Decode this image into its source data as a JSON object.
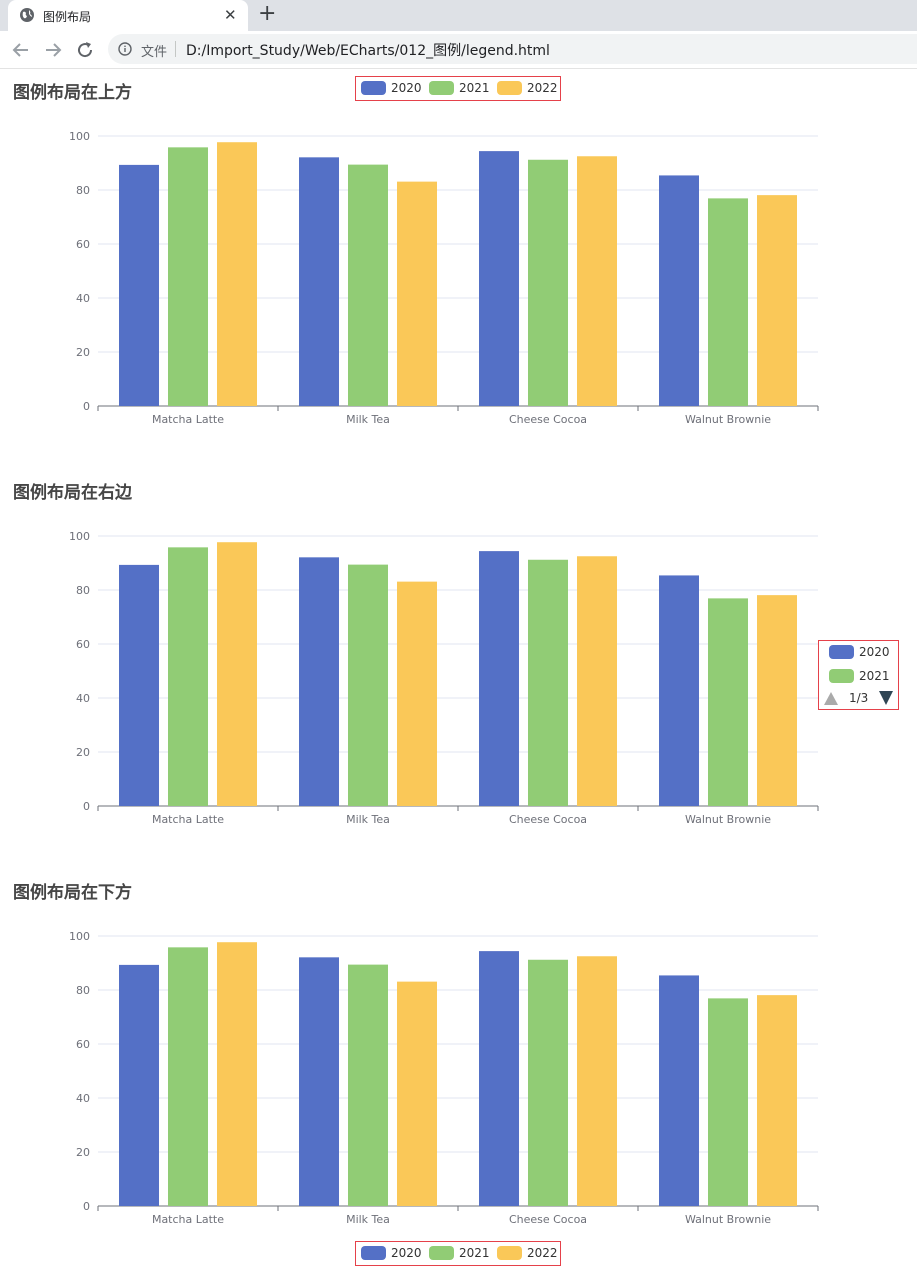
{
  "browser": {
    "tab_title": "图例布局",
    "file_label": "文件",
    "url": "D:/Import_Study/Web/ECharts/012_图例/legend.html",
    "icons": [
      "globe-icon",
      "close-icon",
      "plus-icon",
      "back-arrow-icon",
      "forward-arrow-icon",
      "reload-icon",
      "info-icon"
    ]
  },
  "charts": [
    {
      "id": "top",
      "title": "图例布局在上方",
      "legend_position": "top",
      "legend_page": ""
    },
    {
      "id": "right",
      "title": "图例布局在右边",
      "legend_position": "right",
      "legend_page": "1/3"
    },
    {
      "id": "bottom",
      "title": "图例布局在下方",
      "legend_position": "bottom",
      "legend_page": ""
    }
  ],
  "colors": {
    "2020": "#5470c6",
    "2021": "#91cc75",
    "2022": "#fac858",
    "legend_border": "#e5414a"
  },
  "chart_data": [
    {
      "type": "bar",
      "title": "图例布局在上方",
      "categories": [
        "Matcha Latte",
        "Milk Tea",
        "Cheese Cocoa",
        "Walnut Brownie"
      ],
      "series": [
        {
          "name": "2020",
          "values": [
            89.3,
            92.1,
            94.4,
            85.4
          ]
        },
        {
          "name": "2021",
          "values": [
            95.8,
            89.4,
            91.2,
            76.9
          ]
        },
        {
          "name": "2022",
          "values": [
            97.7,
            83.1,
            92.5,
            78.1
          ]
        }
      ],
      "yticks": [
        "0",
        "20",
        "40",
        "60",
        "80",
        "100"
      ],
      "ylim": [
        0,
        100
      ],
      "legend": [
        "2020",
        "2021",
        "2022"
      ],
      "legend_placement": "top",
      "grid": true
    },
    {
      "type": "bar",
      "title": "图例布局在右边",
      "categories": [
        "Matcha Latte",
        "Milk Tea",
        "Cheese Cocoa",
        "Walnut Brownie"
      ],
      "series": [
        {
          "name": "2020",
          "values": [
            89.3,
            92.1,
            94.4,
            85.4
          ]
        },
        {
          "name": "2021",
          "values": [
            95.8,
            89.4,
            91.2,
            76.9
          ]
        },
        {
          "name": "2022",
          "values": [
            97.7,
            83.1,
            92.5,
            78.1
          ]
        }
      ],
      "yticks": [
        "0",
        "20",
        "40",
        "60",
        "80",
        "100"
      ],
      "ylim": [
        0,
        100
      ],
      "legend": [
        "2020",
        "2021"
      ],
      "legend_placement": "right",
      "grid": true
    },
    {
      "type": "bar",
      "title": "图例布局在下方",
      "categories": [
        "Matcha Latte",
        "Milk Tea",
        "Cheese Cocoa",
        "Walnut Brownie"
      ],
      "series": [
        {
          "name": "2020",
          "values": [
            89.3,
            92.1,
            94.4,
            85.4
          ]
        },
        {
          "name": "2021",
          "values": [
            95.8,
            89.4,
            91.2,
            76.9
          ]
        },
        {
          "name": "2022",
          "values": [
            97.7,
            83.1,
            92.5,
            78.1
          ]
        }
      ],
      "yticks": [
        "0",
        "20",
        "40",
        "60",
        "80",
        "100"
      ],
      "ylim": [
        0,
        100
      ],
      "legend": [
        "2020",
        "2021",
        "2022"
      ],
      "legend_placement": "bottom",
      "grid": true
    }
  ]
}
